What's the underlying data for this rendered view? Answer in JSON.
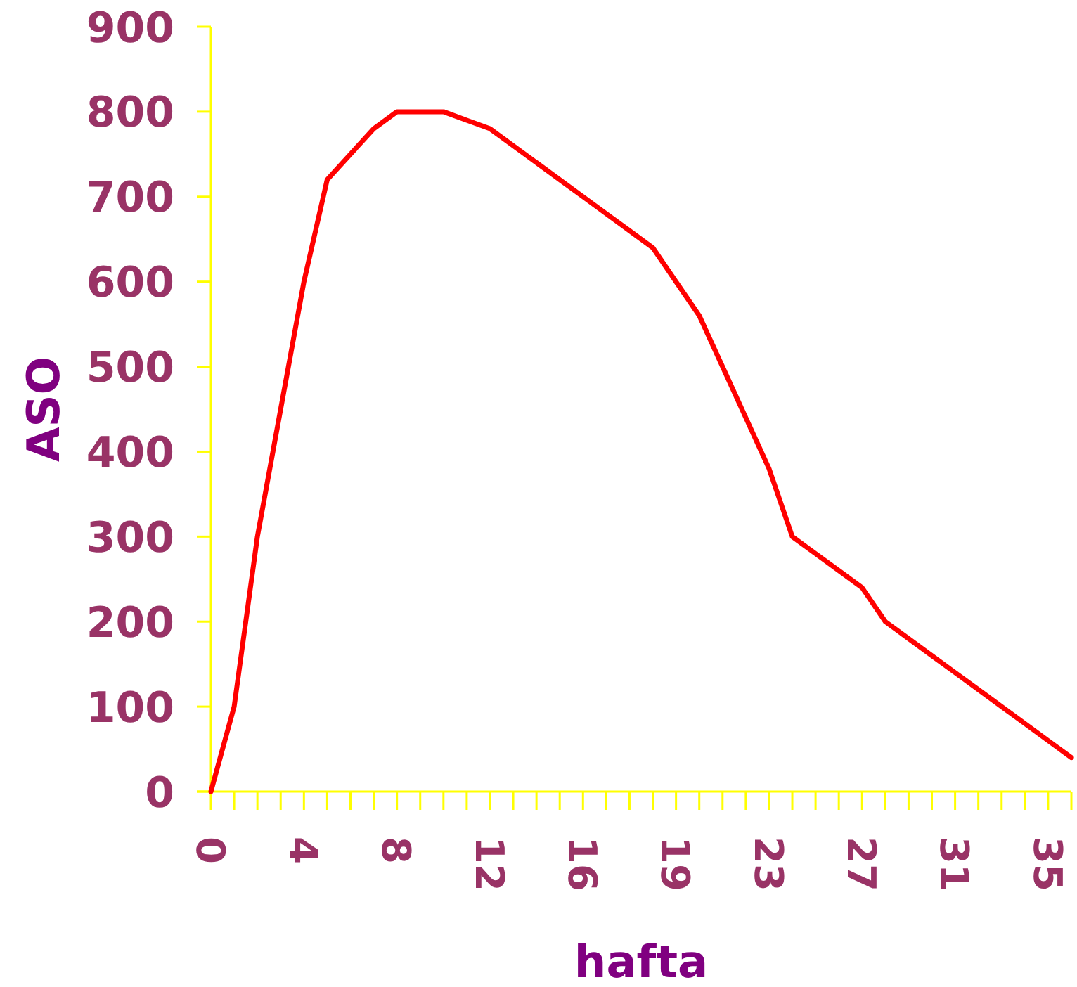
{
  "chart_data": {
    "type": "line",
    "xlabel": "hafta",
    "ylabel": "ASO",
    "categories": [
      "0",
      null,
      null,
      null,
      "4",
      null,
      null,
      null,
      "8",
      null,
      null,
      null,
      "12",
      null,
      null,
      null,
      "16",
      null,
      null,
      null,
      "19",
      null,
      null,
      null,
      "23",
      null,
      null,
      null,
      "27",
      null,
      null,
      null,
      "31",
      null,
      null,
      null,
      "35",
      null
    ],
    "series": [
      {
        "color": "#ff0000",
        "values": [
          0,
          100,
          300,
          450,
          600,
          720,
          750,
          780,
          800,
          800,
          800,
          790,
          780,
          760,
          740,
          720,
          700,
          680,
          660,
          640,
          600,
          560,
          500,
          440,
          380,
          300,
          280,
          260,
          240,
          200,
          180,
          160,
          140,
          120,
          100,
          80,
          60,
          40
        ]
      }
    ],
    "ylim": [
      0,
      900
    ],
    "yticks": [
      0,
      100,
      200,
      300,
      400,
      500,
      600,
      700,
      800,
      900
    ],
    "grid": false,
    "marker": "none",
    "line_style": "solid"
  }
}
